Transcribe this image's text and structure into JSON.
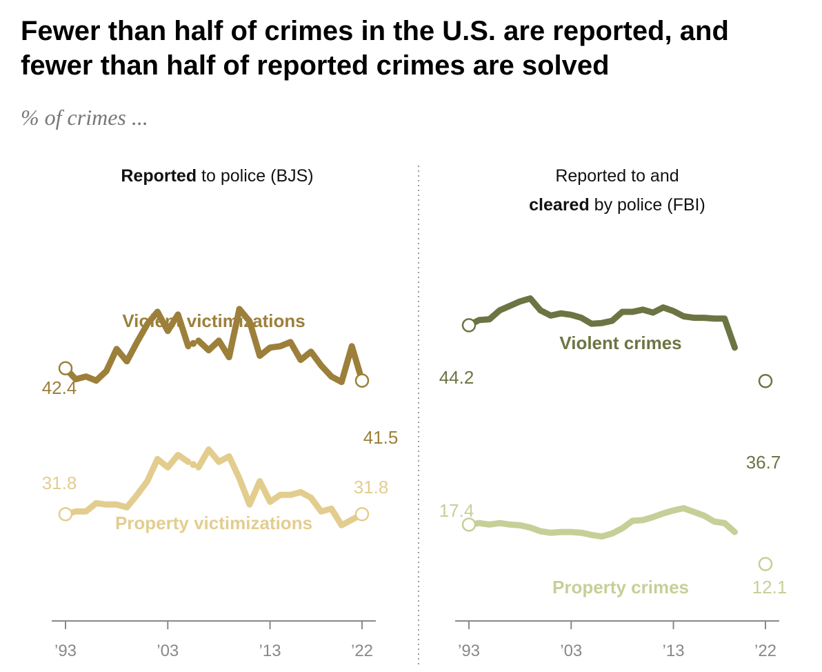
{
  "title": "Fewer than half of crimes in the U.S. are reported, and fewer than half of reported crimes are solved",
  "subtitle": "% of crimes ...",
  "colors": {
    "violent_left": "#9C7F3A",
    "property_left": "#E3CD8E",
    "violent_right": "#6B7543",
    "property_right": "#C6CF97",
    "axis": "#888888",
    "divider": "#999999"
  },
  "chart_data": [
    {
      "type": "line",
      "panel": "left",
      "heading_bold": "Reported",
      "heading_rest": " to police (BJS)",
      "xlim": [
        1993,
        2022
      ],
      "ylim": [
        25,
        50
      ],
      "x_ticks": [
        {
          "year": 1993,
          "label": "’93"
        },
        {
          "year": 2003,
          "label": "’03"
        },
        {
          "year": 2013,
          "label": "’13"
        },
        {
          "year": 2022,
          "label": "’22"
        }
      ],
      "series": [
        {
          "name": "Violent victimizations",
          "color_key": "violent_left",
          "start_label": "42.4",
          "end_label": "41.5",
          "gap": [
            2005,
            2006
          ],
          "points": [
            [
              1993,
              42.4
            ],
            [
              1994,
              41.6
            ],
            [
              1995,
              41.8
            ],
            [
              1996,
              41.5
            ],
            [
              1997,
              42.2
            ],
            [
              1998,
              43.8
            ],
            [
              1999,
              42.9
            ],
            [
              2000,
              44.3
            ],
            [
              2001,
              45.6
            ],
            [
              2002,
              46.5
            ],
            [
              2003,
              45.1
            ],
            [
              2004,
              46.3
            ],
            [
              2005,
              44.0
            ],
            [
              2006,
              44.4
            ],
            [
              2007,
              43.7
            ],
            [
              2008,
              44.4
            ],
            [
              2009,
              43.2
            ],
            [
              2010,
              46.7
            ],
            [
              2011,
              45.8
            ],
            [
              2012,
              43.3
            ],
            [
              2013,
              43.9
            ],
            [
              2014,
              44.0
            ],
            [
              2015,
              44.3
            ],
            [
              2016,
              43.0
            ],
            [
              2017,
              43.6
            ],
            [
              2018,
              42.6
            ],
            [
              2019,
              41.8
            ],
            [
              2020,
              41.4
            ],
            [
              2021,
              44.0
            ],
            [
              2022,
              41.5
            ]
          ]
        },
        {
          "name": "Property victimizations",
          "color_key": "property_left",
          "start_label": "31.8",
          "end_label": "31.8",
          "gap": [
            2005,
            2006
          ],
          "points": [
            [
              1993,
              31.8
            ],
            [
              1994,
              32.0
            ],
            [
              1995,
              32.0
            ],
            [
              1996,
              32.6
            ],
            [
              1997,
              32.5
            ],
            [
              1998,
              32.5
            ],
            [
              1999,
              32.3
            ],
            [
              2000,
              33.2
            ],
            [
              2001,
              34.2
            ],
            [
              2002,
              35.8
            ],
            [
              2003,
              35.2
            ],
            [
              2004,
              36.1
            ],
            [
              2005,
              35.6
            ],
            [
              2006,
              35.2
            ],
            [
              2007,
              36.5
            ],
            [
              2008,
              35.6
            ],
            [
              2009,
              36.0
            ],
            [
              2010,
              34.4
            ],
            [
              2011,
              32.5
            ],
            [
              2012,
              34.2
            ],
            [
              2013,
              32.7
            ],
            [
              2014,
              33.2
            ],
            [
              2015,
              33.2
            ],
            [
              2016,
              33.4
            ],
            [
              2017,
              33.0
            ],
            [
              2018,
              32.0
            ],
            [
              2019,
              32.2
            ],
            [
              2020,
              31.0
            ],
            [
              2021,
              31.4
            ],
            [
              2022,
              31.8
            ]
          ]
        }
      ]
    },
    {
      "type": "line",
      "panel": "right",
      "heading_line1": "Reported to and",
      "heading_bold": "cleared",
      "heading_rest": " by police (FBI)",
      "xlim": [
        1993,
        2022
      ],
      "ylim": [
        5,
        55
      ],
      "x_ticks": [
        {
          "year": 1993,
          "label": "’93"
        },
        {
          "year": 2003,
          "label": "’03"
        },
        {
          "year": 2013,
          "label": "’13"
        },
        {
          "year": 2022,
          "label": "’22"
        }
      ],
      "series": [
        {
          "name": "Violent crimes",
          "color_key": "violent_right",
          "start_label": "44.2",
          "end_label": "36.7",
          "end_point": [
            2022,
            36.7
          ],
          "points": [
            [
              1993,
              44.2
            ],
            [
              1994,
              44.9
            ],
            [
              1995,
              45.0
            ],
            [
              1996,
              46.2
            ],
            [
              1997,
              46.8
            ],
            [
              1998,
              47.4
            ],
            [
              1999,
              47.8
            ],
            [
              2000,
              46.2
            ],
            [
              2001,
              45.5
            ],
            [
              2002,
              45.8
            ],
            [
              2003,
              45.6
            ],
            [
              2004,
              45.2
            ],
            [
              2005,
              44.4
            ],
            [
              2006,
              44.5
            ],
            [
              2007,
              44.8
            ],
            [
              2008,
              46.0
            ],
            [
              2009,
              46.0
            ],
            [
              2010,
              46.3
            ],
            [
              2011,
              45.9
            ],
            [
              2012,
              46.6
            ],
            [
              2013,
              46.1
            ],
            [
              2014,
              45.4
            ],
            [
              2015,
              45.2
            ],
            [
              2016,
              45.2
            ],
            [
              2017,
              45.1
            ],
            [
              2018,
              45.1
            ],
            [
              2019,
              41.2
            ]
          ]
        },
        {
          "name": "Property crimes",
          "color_key": "property_right",
          "start_label": "17.4",
          "end_label": "12.1",
          "end_point": [
            2022,
            12.1
          ],
          "points": [
            [
              1993,
              17.4
            ],
            [
              1994,
              17.6
            ],
            [
              1995,
              17.4
            ],
            [
              1996,
              17.6
            ],
            [
              1997,
              17.4
            ],
            [
              1998,
              17.3
            ],
            [
              1999,
              17.0
            ],
            [
              2000,
              16.5
            ],
            [
              2001,
              16.3
            ],
            [
              2002,
              16.4
            ],
            [
              2003,
              16.4
            ],
            [
              2004,
              16.3
            ],
            [
              2005,
              16.0
            ],
            [
              2006,
              15.8
            ],
            [
              2007,
              16.2
            ],
            [
              2008,
              16.9
            ],
            [
              2009,
              17.9
            ],
            [
              2010,
              18.0
            ],
            [
              2011,
              18.4
            ],
            [
              2012,
              18.9
            ],
            [
              2013,
              19.3
            ],
            [
              2014,
              19.6
            ],
            [
              2015,
              19.1
            ],
            [
              2016,
              18.6
            ],
            [
              2017,
              17.8
            ],
            [
              2018,
              17.6
            ],
            [
              2019,
              16.4
            ]
          ]
        }
      ]
    }
  ]
}
